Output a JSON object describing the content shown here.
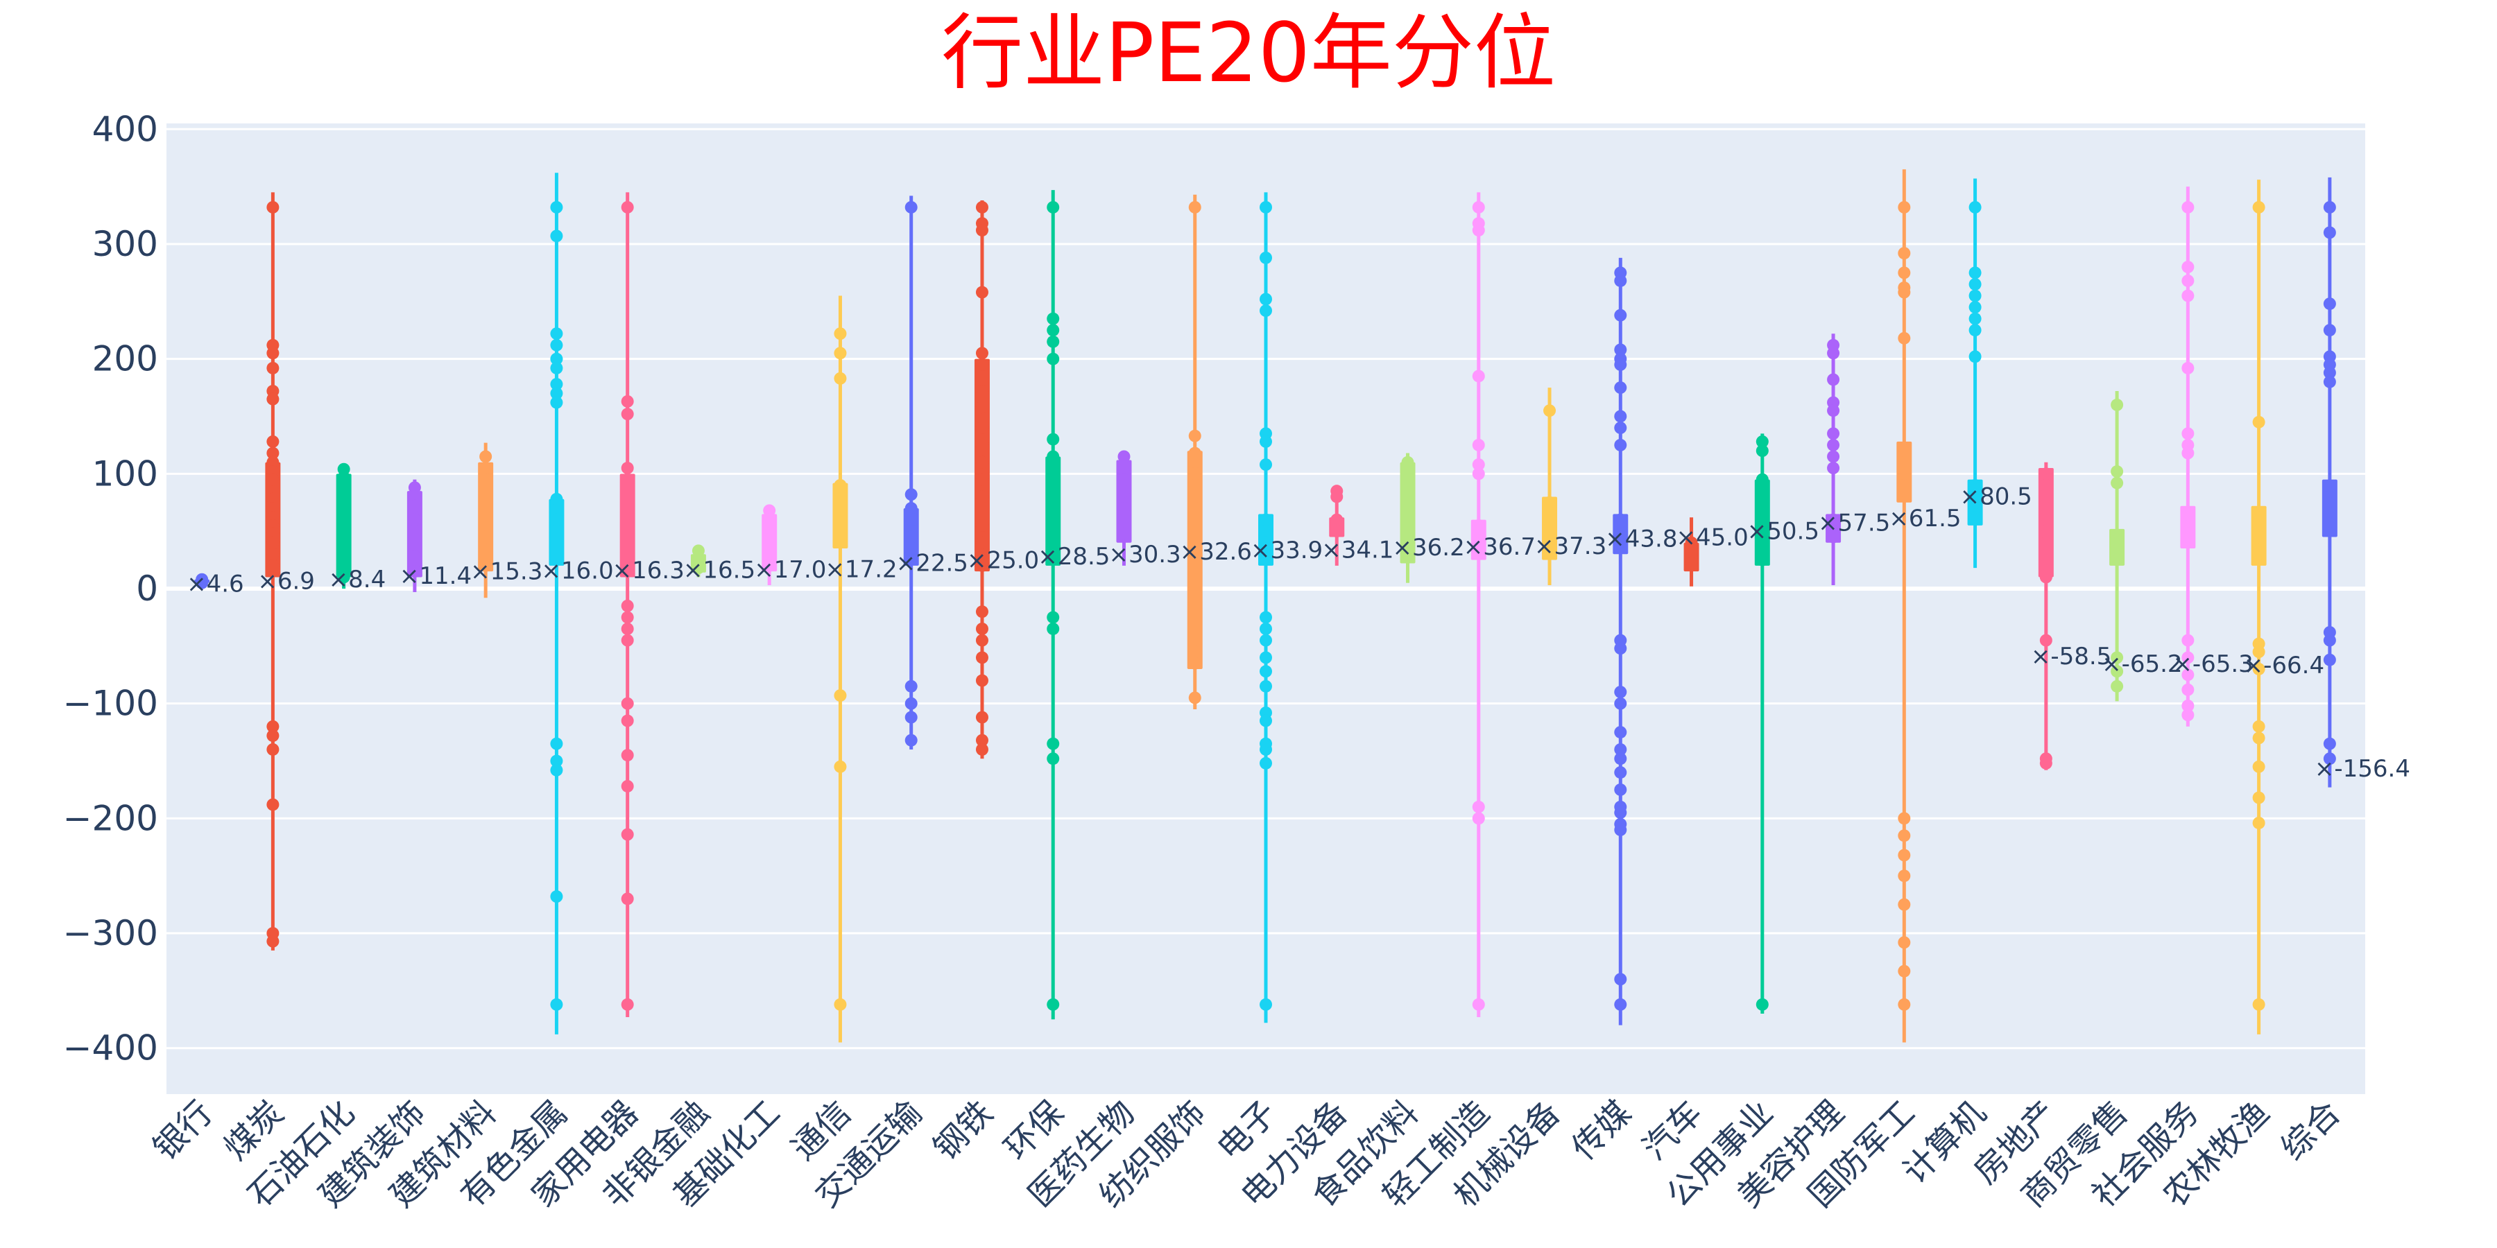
{
  "chart_data": {
    "type": "box",
    "title": "行业PE20年分位",
    "xlabel": "",
    "ylabel": "",
    "ylim": [
      -440,
      405
    ],
    "yticks": [
      {
        "value": 400,
        "label": "400"
      },
      {
        "value": 300,
        "label": "300"
      },
      {
        "value": 200,
        "label": "200"
      },
      {
        "value": 100,
        "label": "100"
      },
      {
        "value": 0,
        "label": "0"
      },
      {
        "value": -100,
        "label": "−100"
      },
      {
        "value": -200,
        "label": "−200"
      },
      {
        "value": -300,
        "label": "−300"
      },
      {
        "value": -400,
        "label": "−400"
      }
    ],
    "grid": true,
    "legend": "none",
    "series": [
      {
        "category": "银行",
        "color": "#636efa",
        "min": 4,
        "q1": 5,
        "q3": 8,
        "max": 9,
        "mean": 4.6,
        "mean_label": "4.6",
        "points": [
          5,
          7,
          8
        ]
      },
      {
        "category": "煤炭",
        "color": "#ef553b",
        "min": -315,
        "q1": 10,
        "q3": 110,
        "max": 345,
        "mean": 6.9,
        "mean_label": "6.9",
        "points": [
          332,
          212,
          205,
          192,
          172,
          165,
          128,
          118,
          110,
          102,
          95,
          78,
          70,
          62,
          55,
          48,
          40,
          30,
          20,
          -120,
          -128,
          -140,
          -188,
          -300,
          -307
        ]
      },
      {
        "category": "石油石化",
        "color": "#00cc96",
        "min": 0,
        "q1": 10,
        "q3": 100,
        "max": 108,
        "mean": 8.4,
        "mean_label": "8.4",
        "points": [
          104,
          97,
          80,
          70,
          65,
          25,
          10
        ]
      },
      {
        "category": "建筑装饰",
        "color": "#ab63fa",
        "min": -3,
        "q1": 10,
        "q3": 85,
        "max": 95,
        "mean": 11.4,
        "mean_label": "11.4",
        "points": [
          88,
          80,
          72,
          60,
          28,
          15
        ]
      },
      {
        "category": "建筑材料",
        "color": "#ffa15a",
        "min": -8,
        "q1": 15,
        "q3": 110,
        "max": 127,
        "mean": 15.3,
        "mean_label": "15.3",
        "points": [
          115,
          105,
          95,
          45,
          20
        ]
      },
      {
        "category": "有色金属",
        "color": "#19d3f3",
        "min": -388,
        "q1": 20,
        "q3": 78,
        "max": 362,
        "mean": 16.0,
        "mean_label": "16.0",
        "points": [
          332,
          307,
          222,
          212,
          200,
          192,
          178,
          170,
          162,
          78,
          60,
          -135,
          -150,
          -158,
          -268,
          -362
        ]
      },
      {
        "category": "家用电器",
        "color": "#ff6692",
        "min": -373,
        "q1": 10,
        "q3": 100,
        "max": 345,
        "mean": 16.3,
        "mean_label": "16.3",
        "points": [
          332,
          163,
          152,
          105,
          95,
          88,
          55,
          40,
          30,
          -15,
          -25,
          -35,
          -45,
          -100,
          -115,
          -145,
          -172,
          -214,
          -270,
          -362
        ]
      },
      {
        "category": "非银金融",
        "color": "#b6e880",
        "min": 10,
        "q1": 14,
        "q3": 30,
        "max": 35,
        "mean": 16.5,
        "mean_label": "16.5",
        "points": [
          33,
          25,
          18
        ]
      },
      {
        "category": "基础化工",
        "color": "#ff97ff",
        "min": 3,
        "q1": 15,
        "q3": 65,
        "max": 73,
        "mean": 17.0,
        "mean_label": "17.0",
        "points": [
          68,
          60,
          45,
          30,
          20
        ]
      },
      {
        "category": "通信",
        "color": "#fecb52",
        "min": -395,
        "q1": 35,
        "q3": 92,
        "max": 255,
        "mean": 17.2,
        "mean_label": "17.2",
        "points": [
          222,
          205,
          183,
          90,
          45,
          -93,
          -155,
          -362
        ]
      },
      {
        "category": "交通运输",
        "color": "#636efa",
        "min": -140,
        "q1": 20,
        "q3": 70,
        "max": 342,
        "mean": 22.5,
        "mean_label": "22.5",
        "points": [
          332,
          82,
          70,
          60,
          50,
          45,
          30,
          -85,
          -100,
          -112,
          -132
        ]
      },
      {
        "category": "钢铁",
        "color": "#ef553b",
        "min": -148,
        "q1": 15,
        "q3": 200,
        "max": 338,
        "mean": 25.0,
        "mean_label": "25.0",
        "points": [
          332,
          318,
          312,
          258,
          205,
          195,
          172,
          158,
          140,
          125,
          110,
          95,
          80,
          55,
          40,
          20,
          -20,
          -35,
          -45,
          -60,
          -80,
          -112,
          -132,
          -140
        ]
      },
      {
        "category": "环保",
        "color": "#00cc96",
        "min": -375,
        "q1": 20,
        "q3": 115,
        "max": 347,
        "mean": 28.5,
        "mean_label": "28.5",
        "points": [
          332,
          235,
          225,
          215,
          200,
          130,
          115,
          100,
          90,
          80,
          60,
          45,
          30,
          -25,
          -35,
          -135,
          -148,
          -362
        ]
      },
      {
        "category": "医药生物",
        "color": "#ab63fa",
        "min": 20,
        "q1": 40,
        "q3": 112,
        "max": 118,
        "mean": 30.3,
        "mean_label": "30.3",
        "points": [
          115,
          105,
          95,
          85,
          70,
          48
        ]
      },
      {
        "category": "纺织服饰",
        "color": "#ffa15a",
        "min": -105,
        "q1": -70,
        "q3": 120,
        "max": 343,
        "mean": 32.6,
        "mean_label": "32.6",
        "points": [
          332,
          133,
          118,
          110,
          100,
          90,
          80,
          45,
          -55,
          -65,
          -95
        ]
      },
      {
        "category": "电子",
        "color": "#19d3f3",
        "min": -378,
        "q1": 20,
        "q3": 65,
        "max": 345,
        "mean": 33.9,
        "mean_label": "33.9",
        "points": [
          332,
          288,
          252,
          242,
          135,
          128,
          108,
          60,
          40,
          -25,
          -35,
          -45,
          -60,
          -72,
          -85,
          -108,
          -115,
          -135,
          -140,
          -152,
          -362
        ]
      },
      {
        "category": "电力设备",
        "color": "#ff6692",
        "min": 20,
        "q1": 45,
        "q3": 62,
        "max": 90,
        "mean": 34.1,
        "mean_label": "34.1",
        "points": [
          85,
          80,
          60,
          50
        ]
      },
      {
        "category": "食品饮料",
        "color": "#b6e880",
        "min": 5,
        "q1": 22,
        "q3": 110,
        "max": 118,
        "mean": 36.2,
        "mean_label": "36.2",
        "points": [
          110,
          100,
          88,
          48,
          30
        ]
      },
      {
        "category": "轻工制造",
        "color": "#ff97ff",
        "min": -373,
        "q1": 25,
        "q3": 60,
        "max": 345,
        "mean": 36.7,
        "mean_label": "36.7",
        "points": [
          332,
          318,
          312,
          185,
          125,
          108,
          100,
          55,
          40,
          -190,
          -200,
          -362
        ]
      },
      {
        "category": "机械设备",
        "color": "#fecb52",
        "min": 3,
        "q1": 25,
        "q3": 80,
        "max": 175,
        "mean": 37.3,
        "mean_label": "37.3",
        "points": [
          155,
          75,
          60,
          45,
          35
        ]
      },
      {
        "category": "传媒",
        "color": "#636efa",
        "min": -380,
        "q1": 30,
        "q3": 65,
        "max": 288,
        "mean": 43.8,
        "mean_label": "43.8",
        "points": [
          275,
          268,
          238,
          208,
          200,
          195,
          175,
          150,
          140,
          125,
          60,
          40,
          -45,
          -52,
          -90,
          -100,
          -125,
          -140,
          -148,
          -160,
          -175,
          -190,
          -195,
          -205,
          -210,
          -340,
          -362
        ]
      },
      {
        "category": "汽车",
        "color": "#ef553b",
        "min": 2,
        "q1": 15,
        "q3": 40,
        "max": 62,
        "mean": 45.0,
        "mean_label": "45.0",
        "points": [
          40,
          30,
          22
        ]
      },
      {
        "category": "公用事业",
        "color": "#00cc96",
        "min": -370,
        "q1": 20,
        "q3": 95,
        "max": 135,
        "mean": 50.5,
        "mean_label": "50.5",
        "points": [
          128,
          120,
          95,
          80,
          65,
          50,
          35,
          25,
          -362
        ]
      },
      {
        "category": "美容护理",
        "color": "#ab63fa",
        "min": 3,
        "q1": 40,
        "q3": 65,
        "max": 222,
        "mean": 57.5,
        "mean_label": "57.5",
        "points": [
          212,
          205,
          182,
          162,
          155,
          135,
          125,
          115,
          105,
          60,
          45
        ]
      },
      {
        "category": "国防军工",
        "color": "#ffa15a",
        "min": -395,
        "q1": 75,
        "q3": 128,
        "max": 365,
        "mean": 61.5,
        "mean_label": "61.5",
        "points": [
          332,
          292,
          275,
          262,
          258,
          218,
          120,
          100,
          85,
          -200,
          -215,
          -232,
          -250,
          -275,
          -308,
          -333,
          -362
        ]
      },
      {
        "category": "计算机",
        "color": "#19d3f3",
        "min": 18,
        "q1": 55,
        "q3": 95,
        "max": 357,
        "mean": 80.5,
        "mean_label": "80.5",
        "points": [
          332,
          275,
          265,
          255,
          245,
          235,
          225,
          202,
          90,
          75,
          62
        ]
      },
      {
        "category": "房地产",
        "color": "#ff6692",
        "min": -158,
        "q1": 10,
        "q3": 105,
        "max": 110,
        "mean": -58.5,
        "mean_label": "-58.5",
        "points": [
          100,
          90,
          80,
          70,
          60,
          50,
          40,
          20,
          10,
          -45,
          -148,
          -152
        ]
      },
      {
        "category": "商贸零售",
        "color": "#b6e880",
        "min": -98,
        "q1": 20,
        "q3": 52,
        "max": 172,
        "mean": -65.2,
        "mean_label": "-65.2",
        "points": [
          160,
          102,
          92,
          45,
          30,
          -60,
          -72,
          -85
        ]
      },
      {
        "category": "社会服务",
        "color": "#ff97ff",
        "min": -120,
        "q1": 35,
        "q3": 72,
        "max": 350,
        "mean": -65.3,
        "mean_label": "-65.3",
        "points": [
          332,
          280,
          268,
          255,
          192,
          135,
          125,
          118,
          65,
          48,
          -45,
          -60,
          -75,
          -88,
          -102,
          -110
        ]
      },
      {
        "category": "农林牧渔",
        "color": "#fecb52",
        "min": -388,
        "q1": 20,
        "q3": 72,
        "max": 356,
        "mean": -66.4,
        "mean_label": "-66.4",
        "points": [
          332,
          145,
          62,
          45,
          30,
          -48,
          -55,
          -70,
          -120,
          -130,
          -155,
          -182,
          -204,
          -362
        ]
      },
      {
        "category": "综合",
        "color": "#636efa",
        "min": -173,
        "q1": 45,
        "q3": 95,
        "max": 358,
        "mean": -156.4,
        "mean_label": "-156.4",
        "points": [
          332,
          310,
          248,
          225,
          202,
          195,
          188,
          180,
          80,
          60,
          -38,
          -45,
          -62,
          -135,
          -148
        ]
      }
    ]
  }
}
